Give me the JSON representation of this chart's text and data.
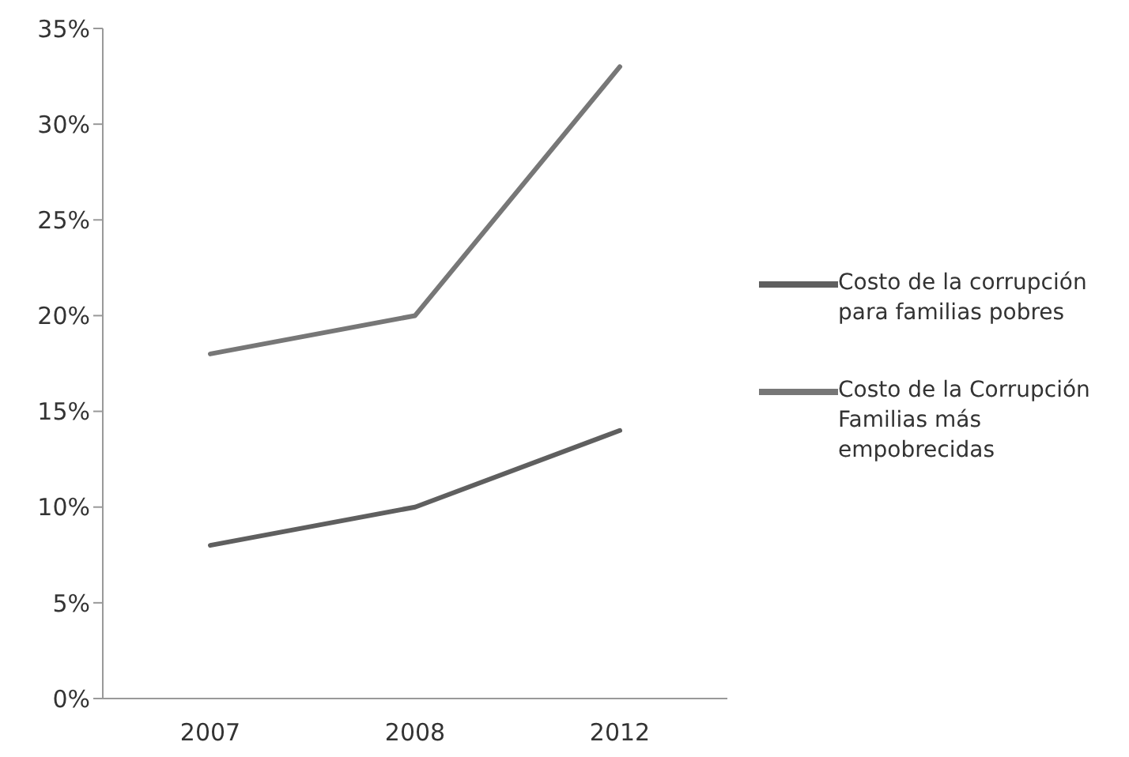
{
  "chart_data": {
    "type": "line",
    "categories": [
      "2007",
      "2008",
      "2012"
    ],
    "series": [
      {
        "name": "Costo de la corrupción para familias pobres",
        "color": "#5f5f5f",
        "values": [
          8,
          10,
          14
        ]
      },
      {
        "name": "Costo de la Corrupción Familias más empobrecidas",
        "color": "#777777",
        "values": [
          18,
          20,
          33
        ]
      }
    ],
    "ylim": [
      0,
      35
    ],
    "yticks": [
      {
        "value": 0,
        "label": "0%"
      },
      {
        "value": 5,
        "label": "5%"
      },
      {
        "value": 10,
        "label": "10%"
      },
      {
        "value": 15,
        "label": "15%"
      },
      {
        "value": 20,
        "label": "20%"
      },
      {
        "value": 25,
        "label": "25%"
      },
      {
        "value": 30,
        "label": "30%"
      },
      {
        "value": 35,
        "label": "35%"
      }
    ],
    "grid": false,
    "legend": "right",
    "marker": "none",
    "line_style": "solid"
  }
}
